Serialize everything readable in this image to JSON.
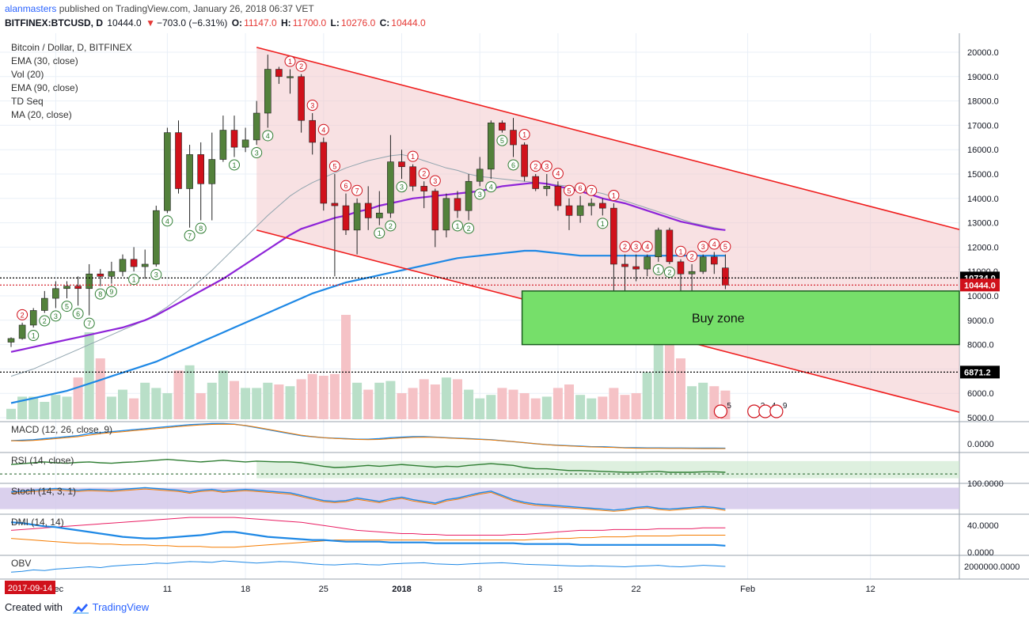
{
  "header": {
    "user": "alanmasters",
    "published": "published on TradingView.com, January 26, 2018 06:37 VET",
    "symbol": "BITFINEX:BTCUSD, D",
    "last": "10444.0",
    "change": "−703.0 (−6.31%)",
    "o_label": "O:",
    "o": "11147.0",
    "h_label": "H:",
    "h": "11700.0",
    "l_label": "L:",
    "l": "10276.0",
    "c_label": "C:",
    "c": "10444.0"
  },
  "legend": [
    "Bitcoin / Dollar, D, BITFINEX",
    "EMA (30, close)",
    "Vol (20)",
    "EMA (90, close)",
    "TD Seq",
    "MA (20, close)"
  ],
  "annotation": {
    "buy_zone": "Buy zone"
  },
  "price_badges": {
    "upper": "10734.0",
    "current": "10444.0",
    "lower": "6871.2"
  },
  "pane_labels": {
    "macd": "MACD (12, 26, close, 9)",
    "rsi": "RSI (14, close)",
    "stoch": "Stoch (14, 3, 1)",
    "dmi": "DMI (14, 14)",
    "obv": "OBV"
  },
  "pane_ticks": {
    "macd": "0.0000",
    "rsi": "100.0000",
    "dmi_top": "40.0000",
    "dmi_bottom": "0.0000",
    "obv": "2000000.0000"
  },
  "events": [
    "5",
    "2",
    "4",
    "9"
  ],
  "date_badge": "2017-09-14",
  "footer": {
    "created": "Created with",
    "brand": "TradingView"
  },
  "colors": {
    "up": "#53813b",
    "down": "#d0111b",
    "ema30": "#8e24d8",
    "ema90": "#1e88e5",
    "ma20": "#90a4ae",
    "channel": "#ef1c1c",
    "buyzone": "#76df6a",
    "vol_up": "#b9dfc8",
    "vol_down": "#f5c2c6"
  },
  "chart_data": {
    "type": "candlestick",
    "symbol": "BITFINEX:BTCUSD",
    "interval": "D",
    "ylim": [
      4800,
      20400
    ],
    "price_ticks": [
      5000,
      6000,
      7000,
      8000,
      9000,
      10000,
      11000,
      12000,
      13000,
      14000,
      15000,
      16000,
      17000,
      18000,
      19000,
      20000
    ],
    "x_ticks": [
      {
        "index": 4,
        "label": "Dec"
      },
      {
        "index": 14,
        "label": "11"
      },
      {
        "index": 21,
        "label": "18"
      },
      {
        "index": 28,
        "label": "25"
      },
      {
        "index": 35,
        "label": "2018"
      },
      {
        "index": 42,
        "label": "8"
      },
      {
        "index": 49,
        "label": "15"
      },
      {
        "index": 56,
        "label": "22"
      },
      {
        "index": 66,
        "label": "Feb"
      },
      {
        "index": 77,
        "label": "12"
      }
    ],
    "candles": [
      [
        8100,
        8300,
        7900,
        8250
      ],
      [
        8250,
        8900,
        8200,
        8800
      ],
      [
        8800,
        9500,
        8700,
        9400
      ],
      [
        9400,
        10200,
        9300,
        9900
      ],
      [
        9900,
        10600,
        9500,
        10300
      ],
      [
        10300,
        10600,
        9900,
        10400
      ],
      [
        10400,
        10800,
        9600,
        10300
      ],
      [
        10300,
        11300,
        9200,
        10900
      ],
      [
        10900,
        11100,
        10400,
        10800
      ],
      [
        10800,
        11400,
        10500,
        11000
      ],
      [
        11000,
        11700,
        10800,
        11500
      ],
      [
        11500,
        12000,
        11000,
        11200
      ],
      [
        11200,
        11900,
        10700,
        11300
      ],
      [
        11300,
        13700,
        11200,
        13500
      ],
      [
        13500,
        16900,
        13400,
        16700
      ],
      [
        16700,
        17200,
        14200,
        14400
      ],
      [
        14400,
        16200,
        12800,
        15800
      ],
      [
        15800,
        16300,
        13100,
        14600
      ],
      [
        14600,
        16700,
        13100,
        15600
      ],
      [
        15600,
        17400,
        15500,
        16800
      ],
      [
        16800,
        17400,
        15700,
        16100
      ],
      [
        16100,
        16900,
        15900,
        16400
      ],
      [
        16400,
        18000,
        16200,
        17500
      ],
      [
        17500,
        19900,
        16900,
        19300
      ],
      [
        19300,
        19400,
        18700,
        19000
      ],
      [
        19000,
        19300,
        18300,
        19000
      ],
      [
        19000,
        19100,
        16700,
        17200
      ],
      [
        17200,
        17500,
        15800,
        16300
      ],
      [
        16300,
        16500,
        13500,
        13800
      ],
      [
        13800,
        15000,
        10800,
        13700
      ],
      [
        13700,
        14200,
        12500,
        12700
      ],
      [
        12700,
        14000,
        11700,
        13800
      ],
      [
        13800,
        14500,
        12700,
        13200
      ],
      [
        13200,
        14300,
        12900,
        13400
      ],
      [
        13400,
        16600,
        13200,
        15500
      ],
      [
        15500,
        16000,
        14800,
        15300
      ],
      [
        15300,
        15400,
        14300,
        14500
      ],
      [
        14500,
        14700,
        13600,
        14300
      ],
      [
        14300,
        14400,
        12000,
        12700
      ],
      [
        12700,
        14200,
        12400,
        14000
      ],
      [
        14000,
        14300,
        13200,
        13500
      ],
      [
        13500,
        15000,
        13100,
        14700
      ],
      [
        14700,
        15700,
        14500,
        15200
      ],
      [
        15200,
        17200,
        14800,
        17100
      ],
      [
        17100,
        17200,
        16700,
        16800
      ],
      [
        16800,
        17300,
        15700,
        16200
      ],
      [
        16200,
        16300,
        14700,
        14900
      ],
      [
        14900,
        15000,
        14300,
        14400
      ],
      [
        14400,
        15000,
        14100,
        14500
      ],
      [
        14500,
        14700,
        13500,
        13700
      ],
      [
        13700,
        14000,
        12700,
        13300
      ],
      [
        13300,
        14100,
        13000,
        13700
      ],
      [
        13700,
        14000,
        13300,
        13800
      ],
      [
        13800,
        14000,
        13300,
        13600
      ],
      [
        13600,
        13800,
        10100,
        11300
      ],
      [
        11300,
        11700,
        9200,
        11200
      ],
      [
        11200,
        11700,
        10600,
        11100
      ],
      [
        11100,
        11700,
        10800,
        11600
      ],
      [
        11600,
        12800,
        11400,
        12700
      ],
      [
        12700,
        12800,
        11300,
        11400
      ],
      [
        11400,
        11500,
        10000,
        10900
      ],
      [
        10900,
        11300,
        9900,
        11000
      ],
      [
        11000,
        11700,
        10900,
        11600
      ],
      [
        11600,
        11800,
        10900,
        11300
      ],
      [
        11147,
        11700,
        10276,
        10444
      ]
    ],
    "ema30": [
      7700,
      7800,
      7900,
      8000,
      8100,
      8200,
      8300,
      8400,
      8500,
      8600,
      8700,
      8850,
      9000,
      9200,
      9450,
      9700,
      9950,
      10200,
      10450,
      10700,
      11000,
      11300,
      11600,
      11900,
      12200,
      12500,
      12750,
      12900,
      13050,
      13200,
      13300,
      13450,
      13550,
      13700,
      13800,
      13900,
      14000,
      14050,
      14100,
      14150,
      14200,
      14250,
      14300,
      14400,
      14500,
      14550,
      14600,
      14650,
      14600,
      14500,
      14400,
      14300,
      14150,
      14000,
      13900,
      13800,
      13650,
      13500,
      13350,
      13200,
      13050,
      12950,
      12850,
      12750,
      12700
    ],
    "ema90": [
      5600,
      5700,
      5800,
      5900,
      6000,
      6100,
      6250,
      6400,
      6550,
      6700,
      6850,
      7000,
      7150,
      7300,
      7500,
      7700,
      7900,
      8100,
      8300,
      8500,
      8700,
      8900,
      9100,
      9300,
      9500,
      9700,
      9900,
      10100,
      10250,
      10400,
      10550,
      10650,
      10750,
      10850,
      10950,
      11050,
      11150,
      11250,
      11350,
      11450,
      11550,
      11600,
      11650,
      11700,
      11750,
      11800,
      11850,
      11850,
      11800,
      11750,
      11700,
      11650,
      11650,
      11650,
      11650,
      11650,
      11650,
      11650,
      11650,
      11650,
      11650,
      11650,
      11650,
      11650,
      11650
    ],
    "ma20": [
      6700,
      6850,
      7000,
      7200,
      7400,
      7600,
      7800,
      8000,
      8200,
      8400,
      8600,
      8800,
      9000,
      9250,
      9550,
      9900,
      10250,
      10650,
      11050,
      11500,
      11950,
      12400,
      12850,
      13300,
      13700,
      14100,
      14400,
      14650,
      14850,
      15050,
      15250,
      15400,
      15550,
      15650,
      15750,
      15800,
      15700,
      15550,
      15400,
      15250,
      15150,
      15000,
      14900,
      14850,
      14800,
      14750,
      14700,
      14650,
      14600,
      14550,
      14500,
      14400,
      14300,
      14200,
      14050,
      13900,
      13750,
      13600,
      13450,
      13300,
      13150,
      13000,
      12900,
      12800,
      12700
    ],
    "volume_ylim": [
      0,
      1000
    ],
    "volume": [
      120,
      260,
      260,
      200,
      280,
      260,
      480,
      1000,
      700,
      260,
      340,
      240,
      420,
      360,
      300,
      560,
      620,
      300,
      420,
      560,
      440,
      360,
      360,
      420,
      400,
      380,
      460,
      520,
      500,
      520,
      1200,
      420,
      340,
      420,
      440,
      300,
      360,
      460,
      400,
      480,
      460,
      340,
      240,
      280,
      360,
      340,
      300,
      240,
      260,
      360,
      400,
      280,
      240,
      260,
      360,
      280,
      300,
      540,
      900,
      900,
      700,
      380,
      420,
      380,
      330
    ],
    "macd": [
      0.1,
      0.15,
      0.2,
      0.3,
      0.4,
      0.5,
      0.6,
      0.8,
      0.9,
      1.0,
      1.1,
      1.2,
      1.3,
      1.4,
      1.5,
      1.6,
      1.7,
      1.75,
      1.8,
      1.8,
      1.75,
      1.6,
      1.4,
      1.2,
      1.0,
      0.8,
      0.6,
      0.5,
      0.4,
      0.35,
      0.3,
      0.25,
      0.25,
      0.3,
      0.4,
      0.45,
      0.5,
      0.5,
      0.45,
      0.4,
      0.35,
      0.3,
      0.25,
      0.2,
      0.1,
      0.0,
      -0.1,
      -0.2,
      -0.3,
      -0.35,
      -0.4,
      -0.45,
      -0.5,
      -0.5,
      -0.55,
      -0.6,
      -0.6,
      -0.62,
      -0.62,
      -0.63,
      -0.63,
      -0.64,
      -0.64,
      -0.64,
      -0.65
    ],
    "rsi": [
      62,
      64,
      66,
      68,
      66,
      65,
      67,
      68,
      66,
      65,
      67,
      68,
      70,
      72,
      74,
      72,
      70,
      68,
      70,
      72,
      70,
      68,
      70,
      69,
      68,
      68,
      66,
      62,
      58,
      55,
      56,
      58,
      60,
      58,
      60,
      62,
      60,
      58,
      56,
      58,
      57,
      60,
      62,
      64,
      62,
      60,
      55,
      52,
      52,
      50,
      48,
      48,
      47,
      46,
      45,
      44,
      44,
      45,
      46,
      44,
      44,
      44,
      45,
      45,
      44
    ],
    "stoch": [
      80,
      82,
      84,
      86,
      88,
      86,
      84,
      86,
      85,
      84,
      86,
      88,
      90,
      88,
      86,
      84,
      80,
      84,
      86,
      82,
      84,
      86,
      84,
      82,
      80,
      78,
      72,
      66,
      60,
      58,
      60,
      66,
      62,
      58,
      64,
      68,
      62,
      58,
      54,
      62,
      66,
      72,
      78,
      82,
      72,
      62,
      56,
      52,
      50,
      48,
      46,
      44,
      42,
      40,
      38,
      40,
      44,
      46,
      42,
      40,
      42,
      44,
      46,
      44,
      40
    ],
    "dmi_plus": [
      40,
      39,
      37,
      35,
      34,
      32,
      30,
      28,
      26,
      24,
      22,
      21,
      20,
      20,
      21,
      22,
      23,
      24,
      26,
      28,
      28,
      26,
      24,
      22,
      21,
      20,
      19,
      18,
      18,
      17,
      16,
      16,
      16,
      16,
      15,
      15,
      15,
      15,
      14,
      14,
      14,
      14,
      14,
      14,
      14,
      14,
      13,
      13,
      13,
      13,
      13,
      12,
      12,
      12,
      12,
      12,
      12,
      12,
      12,
      12,
      12,
      12,
      12,
      12,
      11
    ],
    "dmi_minus": [
      20,
      19,
      18,
      17,
      16,
      15,
      14,
      14,
      13,
      13,
      12,
      12,
      12,
      11,
      11,
      10,
      10,
      10,
      9,
      9,
      9,
      10,
      11,
      12,
      13,
      14,
      15,
      16,
      17,
      18,
      18,
      18,
      18,
      18,
      18,
      18,
      18,
      18,
      18,
      18,
      18,
      18,
      18,
      18,
      18,
      18,
      18,
      19,
      19,
      20,
      20,
      21,
      21,
      22,
      22,
      22,
      23,
      23,
      23,
      23,
      24,
      24,
      24,
      24,
      24
    ],
    "adx": [
      30,
      31,
      32,
      33,
      34,
      35,
      36,
      37,
      38,
      39,
      40,
      41,
      42,
      43,
      44,
      45,
      46,
      46,
      46,
      46,
      46,
      45,
      44,
      43,
      42,
      41,
      40,
      38,
      36,
      34,
      32,
      30,
      29,
      28,
      27,
      26,
      26,
      25,
      25,
      24,
      24,
      24,
      24,
      24,
      24,
      25,
      25,
      26,
      27,
      28,
      29,
      30,
      30,
      30,
      31,
      31,
      31,
      31,
      32,
      32,
      32,
      32,
      33,
      33,
      33
    ],
    "obv": [
      0.2,
      0.25,
      0.35,
      0.3,
      0.4,
      0.45,
      0.5,
      0.55,
      0.5,
      0.6,
      0.65,
      0.7,
      0.72,
      0.8,
      0.78,
      0.85,
      0.9,
      0.88,
      0.85,
      0.95,
      0.9,
      0.85,
      0.8,
      0.85,
      0.9,
      0.88,
      0.82,
      0.75,
      0.7,
      0.68,
      0.72,
      0.75,
      0.7,
      0.68,
      0.74,
      0.78,
      0.8,
      0.82,
      0.75,
      0.72,
      0.7,
      0.74,
      0.78,
      0.8,
      0.82,
      0.78,
      0.72,
      0.7,
      0.68,
      0.65,
      0.62,
      0.6,
      0.62,
      0.6,
      0.58,
      0.55,
      0.6,
      0.62,
      0.65,
      0.58,
      0.55,
      0.6,
      0.65,
      0.62,
      0.58
    ]
  }
}
